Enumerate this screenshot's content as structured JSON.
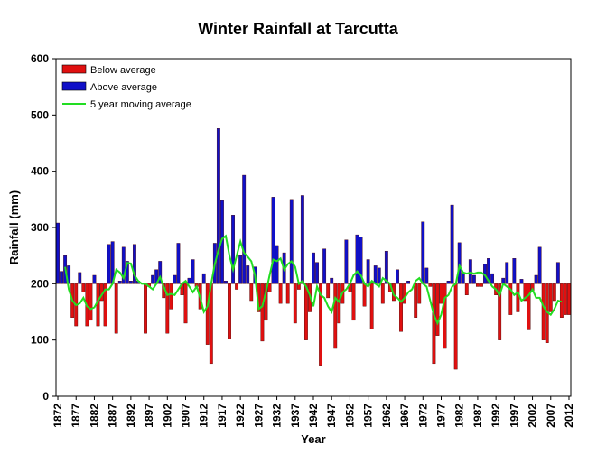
{
  "chart_data": {
    "type": "bar",
    "title": "Winter Rainfall at Tarcutta",
    "x_label": "Year",
    "y_label": "Rainfall (mm)",
    "baseline": 200,
    "legend": [
      {
        "name": "Below average",
        "color": "#e01010"
      },
      {
        "name": "Above average",
        "color": "#1010c8"
      }
    ],
    "moving_average": {
      "name": "5 year moving average",
      "color": "#22dd22",
      "values": [
        null,
        null,
        230,
        190,
        170,
        162,
        165,
        175,
        160,
        155,
        158,
        170,
        180,
        190,
        190,
        200,
        225,
        220,
        210,
        237,
        236,
        215,
        205,
        200,
        200,
        195,
        190,
        200,
        212,
        195,
        180,
        182,
        180,
        190,
        200,
        205,
        195,
        185,
        195,
        175,
        150,
        160,
        200,
        235,
        260,
        280,
        285,
        250,
        225,
        250,
        275,
        255,
        248,
        240,
        215,
        155,
        160,
        185,
        215,
        243,
        240,
        245,
        225,
        235,
        240,
        230,
        200,
        205,
        195,
        180,
        160,
        195,
        180,
        175,
        160,
        150,
        175,
        168,
        185,
        190,
        200,
        215,
        222,
        215,
        200,
        195,
        205,
        200,
        195,
        210,
        205,
        200,
        180,
        175,
        168,
        175,
        185,
        190,
        205,
        210,
        200,
        195,
        170,
        145,
        130,
        145,
        175,
        180,
        195,
        200,
        232,
        220,
        218,
        220,
        218,
        220,
        220,
        215,
        205,
        195,
        190,
        180,
        200,
        195,
        190,
        180,
        185,
        170,
        175,
        180,
        190,
        175,
        175,
        160,
        150,
        145,
        155,
        170,
        168,
        null,
        null
      ]
    },
    "x": [
      1872,
      1873,
      1874,
      1875,
      1876,
      1877,
      1878,
      1879,
      1880,
      1881,
      1882,
      1883,
      1884,
      1885,
      1886,
      1887,
      1888,
      1889,
      1890,
      1891,
      1892,
      1893,
      1894,
      1895,
      1896,
      1897,
      1898,
      1899,
      1900,
      1901,
      1902,
      1903,
      1904,
      1905,
      1906,
      1907,
      1908,
      1909,
      1910,
      1911,
      1912,
      1913,
      1914,
      1915,
      1916,
      1917,
      1918,
      1919,
      1920,
      1921,
      1922,
      1923,
      1924,
      1925,
      1926,
      1927,
      1928,
      1929,
      1930,
      1931,
      1932,
      1933,
      1934,
      1935,
      1936,
      1937,
      1938,
      1939,
      1940,
      1941,
      1942,
      1943,
      1944,
      1945,
      1946,
      1947,
      1948,
      1949,
      1950,
      1951,
      1952,
      1953,
      1954,
      1955,
      1956,
      1957,
      1958,
      1959,
      1960,
      1961,
      1962,
      1963,
      1964,
      1965,
      1966,
      1967,
      1968,
      1969,
      1970,
      1971,
      1972,
      1973,
      1974,
      1975,
      1976,
      1977,
      1978,
      1979,
      1980,
      1981,
      1982,
      1983,
      1984,
      1985,
      1986,
      1987,
      1988,
      1989,
      1990,
      1991,
      1992,
      1993,
      1994,
      1995,
      1996,
      1997,
      1998,
      1999,
      2000,
      2001,
      2002,
      2003,
      2004,
      2005,
      2006,
      2007,
      2008,
      2009,
      2010,
      2011,
      2012
    ],
    "values": [
      308,
      222,
      250,
      232,
      140,
      125,
      220,
      185,
      125,
      135,
      215,
      125,
      170,
      125,
      270,
      275,
      112,
      205,
      265,
      240,
      205,
      270,
      205,
      200,
      112,
      195,
      215,
      225,
      240,
      175,
      112,
      155,
      215,
      272,
      180,
      130,
      210,
      243,
      195,
      155,
      218,
      92,
      58,
      272,
      476,
      348,
      205,
      102,
      322,
      190,
      250,
      393,
      232,
      170,
      230,
      150,
      98,
      135,
      185,
      354,
      268,
      165,
      255,
      165,
      350,
      130,
      190,
      357,
      100,
      150,
      255,
      238,
      55,
      262,
      175,
      210,
      85,
      130,
      165,
      278,
      185,
      135,
      287,
      283,
      160,
      243,
      120,
      232,
      228,
      165,
      258,
      185,
      170,
      225,
      115,
      165,
      205,
      200,
      140,
      165,
      310,
      228,
      195,
      58,
      108,
      165,
      85,
      205,
      340,
      48,
      273,
      220,
      180,
      243,
      215,
      195,
      195,
      235,
      245,
      218,
      180,
      100,
      210,
      238,
      145,
      245,
      150,
      208,
      170,
      118,
      185,
      215,
      265,
      100,
      95,
      150,
      170,
      238,
      140,
      145,
      145
    ],
    "xlim": [
      1871.5,
      2012.5
    ],
    "xticks": [
      1872,
      1877,
      1882,
      1887,
      1892,
      1897,
      1902,
      1907,
      1912,
      1917,
      1922,
      1927,
      1932,
      1937,
      1942,
      1947,
      1952,
      1957,
      1962,
      1967,
      1972,
      1977,
      1982,
      1987,
      1992,
      1997,
      2002,
      2007,
      2012
    ],
    "ylim": [
      0,
      600
    ],
    "yticks": [
      0,
      100,
      200,
      300,
      400,
      500,
      600
    ]
  }
}
